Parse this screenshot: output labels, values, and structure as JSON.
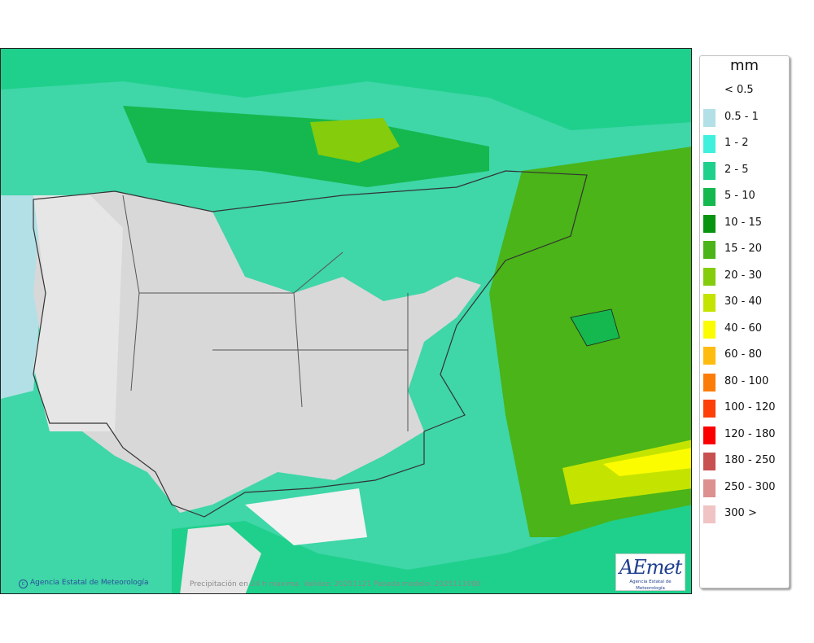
{
  "legend": {
    "title": "mm",
    "items": [
      {
        "label": "< 0.5",
        "color": "#ffffff"
      },
      {
        "label": "0.5 - 1",
        "color": "#b2e0e6"
      },
      {
        "label": "1 - 2",
        "color": "#3ff0dc"
      },
      {
        "label": "2 - 5",
        "color": "#1fd08c"
      },
      {
        "label": "5 - 10",
        "color": "#14b84e"
      },
      {
        "label": "10 - 15",
        "color": "#089410"
      },
      {
        "label": "15 - 20",
        "color": "#4ab418"
      },
      {
        "label": "20 - 30",
        "color": "#84cc0c"
      },
      {
        "label": "30 - 40",
        "color": "#c4e400"
      },
      {
        "label": "40 - 60",
        "color": "#fcfc00"
      },
      {
        "label": "60 - 80",
        "color": "#ffbc10"
      },
      {
        "label": "80 - 100",
        "color": "#fc7c08"
      },
      {
        "label": "100 - 120",
        "color": "#fc4008"
      },
      {
        "label": "120 - 180",
        "color": "#fc0000"
      },
      {
        "label": "180 - 250",
        "color": "#c85050"
      },
      {
        "label": "250 - 300",
        "color": "#dc9090"
      },
      {
        "label": "300 >",
        "color": "#f0c4c4"
      }
    ]
  },
  "footer": {
    "copyright": "Agencia Estatal de Meteorología",
    "caption": "Precipitación en 24 h máxima. Validez: 20251121 Pasada modelo: 2025111900"
  },
  "logo": {
    "mark": "AEmet",
    "subtitle": "Agencia Estatal de Meteorología"
  }
}
